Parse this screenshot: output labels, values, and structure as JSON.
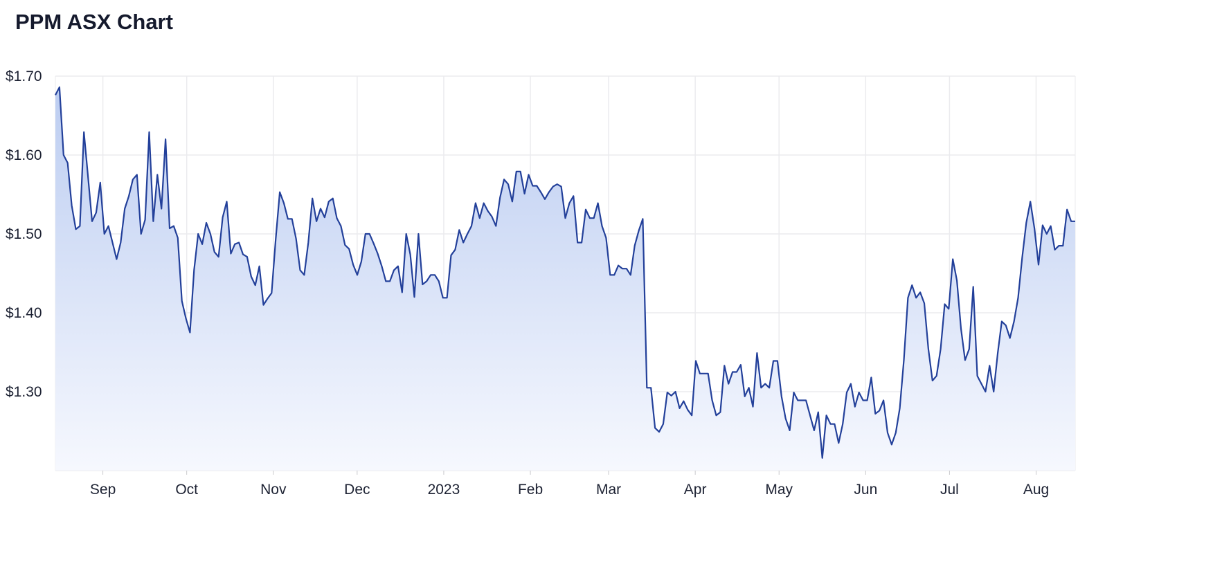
{
  "chart_data": {
    "type": "area",
    "title": "PPM ASX Chart",
    "xlabel": "",
    "ylabel": "",
    "x_range": [
      "2022-08-15",
      "2023-08-15"
    ],
    "ylim": [
      1.2,
      1.7
    ],
    "y_ticks": [
      {
        "value": 1.3,
        "label": "$1.30"
      },
      {
        "value": 1.4,
        "label": "$1.40"
      },
      {
        "value": 1.5,
        "label": "$1.50"
      },
      {
        "value": 1.6,
        "label": "$1.60"
      },
      {
        "value": 1.7,
        "label": "$1.70"
      }
    ],
    "x_ticks": [
      {
        "date": "2022-09-01",
        "label": "Sep"
      },
      {
        "date": "2022-10-01",
        "label": "Oct"
      },
      {
        "date": "2022-11-01",
        "label": "Nov"
      },
      {
        "date": "2022-12-01",
        "label": "Dec"
      },
      {
        "date": "2023-01-01",
        "label": "2023"
      },
      {
        "date": "2023-02-01",
        "label": "Feb"
      },
      {
        "date": "2023-03-01",
        "label": "Mar"
      },
      {
        "date": "2023-04-01",
        "label": "Apr"
      },
      {
        "date": "2023-05-01",
        "label": "May"
      },
      {
        "date": "2023-06-01",
        "label": "Jun"
      },
      {
        "date": "2023-07-01",
        "label": "Jul"
      },
      {
        "date": "2023-08-01",
        "label": "Aug"
      }
    ],
    "grid": true,
    "legend": "none",
    "colors": {
      "line": "#23409a",
      "fill_top": "#bccdf1",
      "fill_bottom": "#f6f8fe",
      "grid": "#ebebee"
    },
    "values": [
      1.676,
      1.686,
      1.6,
      1.59,
      1.536,
      1.506,
      1.51,
      1.629,
      1.573,
      1.516,
      1.527,
      1.565,
      1.5,
      1.51,
      1.489,
      1.468,
      1.489,
      1.532,
      1.548,
      1.569,
      1.575,
      1.5,
      1.518,
      1.629,
      1.516,
      1.575,
      1.532,
      1.62,
      1.507,
      1.51,
      1.495,
      1.415,
      1.393,
      1.375,
      1.454,
      1.5,
      1.487,
      1.514,
      1.5,
      1.477,
      1.471,
      1.521,
      1.541,
      1.475,
      1.487,
      1.489,
      1.474,
      1.471,
      1.446,
      1.435,
      1.459,
      1.41,
      1.418,
      1.425,
      1.493,
      1.553,
      1.539,
      1.519,
      1.519,
      1.494,
      1.454,
      1.448,
      1.489,
      1.545,
      1.516,
      1.532,
      1.521,
      1.541,
      1.545,
      1.52,
      1.51,
      1.486,
      1.481,
      1.461,
      1.448,
      1.465,
      1.5,
      1.5,
      1.488,
      1.475,
      1.459,
      1.44,
      1.44,
      1.454,
      1.459,
      1.426,
      1.5,
      1.474,
      1.42,
      1.5,
      1.436,
      1.44,
      1.448,
      1.448,
      1.44,
      1.419,
      1.419,
      1.473,
      1.48,
      1.505,
      1.489,
      1.5,
      1.51,
      1.539,
      1.52,
      1.539,
      1.529,
      1.522,
      1.51,
      1.546,
      1.569,
      1.563,
      1.541,
      1.579,
      1.579,
      1.551,
      1.575,
      1.561,
      1.561,
      1.553,
      1.544,
      1.553,
      1.56,
      1.563,
      1.56,
      1.52,
      1.539,
      1.548,
      1.489,
      1.489,
      1.531,
      1.52,
      1.52,
      1.539,
      1.51,
      1.495,
      1.448,
      1.448,
      1.46,
      1.456,
      1.456,
      1.448,
      1.485,
      1.504,
      1.519,
      1.305,
      1.305,
      1.254,
      1.249,
      1.259,
      1.299,
      1.295,
      1.3,
      1.279,
      1.288,
      1.277,
      1.27,
      1.339,
      1.323,
      1.323,
      1.323,
      1.289,
      1.27,
      1.274,
      1.333,
      1.31,
      1.325,
      1.325,
      1.334,
      1.294,
      1.305,
      1.281,
      1.349,
      1.305,
      1.31,
      1.305,
      1.339,
      1.339,
      1.294,
      1.266,
      1.251,
      1.299,
      1.289,
      1.289,
      1.289,
      1.27,
      1.251,
      1.274,
      1.216,
      1.27,
      1.259,
      1.259,
      1.235,
      1.259,
      1.299,
      1.31,
      1.281,
      1.299,
      1.289,
      1.289,
      1.318,
      1.272,
      1.276,
      1.289,
      1.248,
      1.233,
      1.248,
      1.279,
      1.34,
      1.419,
      1.435,
      1.419,
      1.426,
      1.412,
      1.354,
      1.314,
      1.32,
      1.354,
      1.411,
      1.405,
      1.468,
      1.441,
      1.38,
      1.34,
      1.354,
      1.433,
      1.32,
      1.31,
      1.3,
      1.333,
      1.3,
      1.349,
      1.389,
      1.384,
      1.368,
      1.389,
      1.419,
      1.47,
      1.514,
      1.541,
      1.507,
      1.461,
      1.511,
      1.5,
      1.51,
      1.48,
      1.485,
      1.485,
      1.531,
      1.516,
      1.516
    ]
  }
}
